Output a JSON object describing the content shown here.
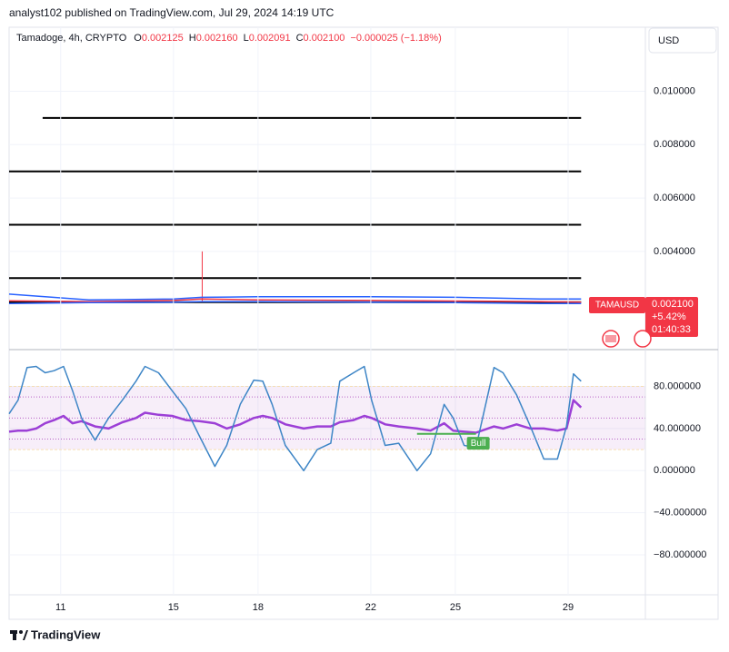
{
  "header": {
    "publisher": "analyst102 published on TradingView.com, Jul 29, 2024 14:19 UTC"
  },
  "legend": {
    "symbol": "Tamadoge, 4h, CRYPTO",
    "fields": [
      {
        "label": "O",
        "value": "0.002125"
      },
      {
        "label": "H",
        "value": "0.002160"
      },
      {
        "label": "L",
        "value": "0.002091"
      },
      {
        "label": "C",
        "value": "0.002100"
      }
    ],
    "change": "−0.000025 (−1.18%)"
  },
  "currency": "USD",
  "price_tag": {
    "symbol": "TAMAUSD",
    "price": "0.002100",
    "change": "+5.42%",
    "countdown": "01:40:33"
  },
  "footer": {
    "brand": "TradingView"
  },
  "chart_data": [
    {
      "type": "line",
      "x": [
        9.17,
        12,
        15,
        16,
        18,
        22,
        25,
        28,
        29.46
      ],
      "series": [
        {
          "color": "#2962ff",
          "values": [
            0.0024,
            0.00218,
            0.00222,
            0.00228,
            0.0023,
            0.0023,
            0.00228,
            0.00222,
            0.00222
          ]
        },
        {
          "color": "#f23645",
          "values": [
            0.00215,
            0.00212,
            0.00216,
            0.00222,
            0.00218,
            0.00216,
            0.00214,
            0.00212,
            0.0021
          ]
        },
        {
          "color": "#2962ff",
          "values": [
            0.00205,
            0.00208,
            0.0021,
            0.00212,
            0.00212,
            0.0021,
            0.00208,
            0.00205,
            0.00205
          ]
        }
      ],
      "spike": {
        "x": 16.02,
        "low": 0.0021,
        "high": 0.004,
        "color": "#f23645"
      },
      "levels": [
        0.009,
        0.007,
        0.005,
        0.003,
        0.0021
      ],
      "level_starts": [
        10.36,
        9.17,
        9.17,
        9.17,
        9.17
      ],
      "level_end": 29.46,
      "level_color": "#000000",
      "xlim": [
        9.17,
        31.74
      ],
      "ylim": [
        0.00032,
        0.0124
      ],
      "yticks": [
        {
          "value": 0.004,
          "label": "0.004000"
        },
        {
          "value": 0.006,
          "label": "0.006000"
        },
        {
          "value": 0.008,
          "label": "0.008000"
        },
        {
          "value": 0.01,
          "label": "0.010000"
        }
      ],
      "grid": true
    },
    {
      "type": "line",
      "x": [
        9.17,
        9.49,
        9.81,
        10.13,
        10.45,
        10.77,
        11.1,
        11.42,
        11.74,
        12.22,
        12.7,
        13.19,
        13.67,
        13.99,
        14.47,
        14.95,
        15.44,
        15.92,
        16.47,
        16.89,
        17.37,
        17.85,
        18.17,
        18.5,
        18.97,
        19.62,
        20.1,
        20.58,
        20.9,
        21.39,
        21.77,
        22.03,
        22.51,
        22.99,
        23.64,
        24.12,
        24.6,
        24.92,
        25.31,
        25.73,
        26.37,
        26.69,
        27.17,
        27.66,
        28.14,
        28.62,
        28.94,
        29.19,
        29.46
      ],
      "series": [
        {
          "color": "#9c3fd6",
          "values": [
            37,
            38,
            38,
            40,
            45,
            48,
            52,
            45,
            47,
            42,
            40,
            46,
            50,
            55,
            53,
            52,
            48,
            47,
            45,
            40,
            44,
            50,
            52,
            50,
            44,
            40,
            42,
            42,
            46,
            48,
            52,
            50,
            44,
            42,
            40,
            38,
            45,
            38,
            37,
            36,
            42,
            40,
            44,
            40,
            40,
            38,
            40,
            67,
            60
          ]
        },
        {
          "color": "#3d85c6",
          "values": [
            54,
            67,
            98,
            99,
            93,
            95,
            99,
            76,
            50,
            29,
            50,
            67,
            85,
            99,
            93,
            76,
            59,
            33,
            4,
            24,
            63,
            86,
            85,
            63,
            24,
            0,
            20,
            26,
            85,
            93,
            99,
            67,
            24,
            26,
            0,
            16,
            63,
            50,
            24,
            22,
            98,
            93,
            72,
            42,
            11,
            11,
            42,
            92,
            85
          ]
        }
      ],
      "support": {
        "x": [
          23.64,
          25.73
        ],
        "values": [
          35,
          35
        ],
        "color": "#4caf50"
      },
      "annotations": [
        {
          "text": "Bull",
          "x": 25.73,
          "y": 26
        }
      ],
      "bands": [
        20,
        80
      ],
      "levels": [
        30,
        50,
        70
      ],
      "xlim": [
        9.17,
        31.74
      ],
      "ylim": [
        -118,
        115
      ],
      "xticks": [
        11,
        15,
        18,
        22,
        25,
        29
      ],
      "yticks": [
        {
          "value": -80,
          "label": "−80.000000"
        },
        {
          "value": -40,
          "label": "−40.000000"
        },
        {
          "value": 0,
          "label": "0.000000"
        },
        {
          "value": 40,
          "label": "40.000000"
        },
        {
          "value": 80,
          "label": "80.000000"
        }
      ],
      "grid": true
    }
  ]
}
